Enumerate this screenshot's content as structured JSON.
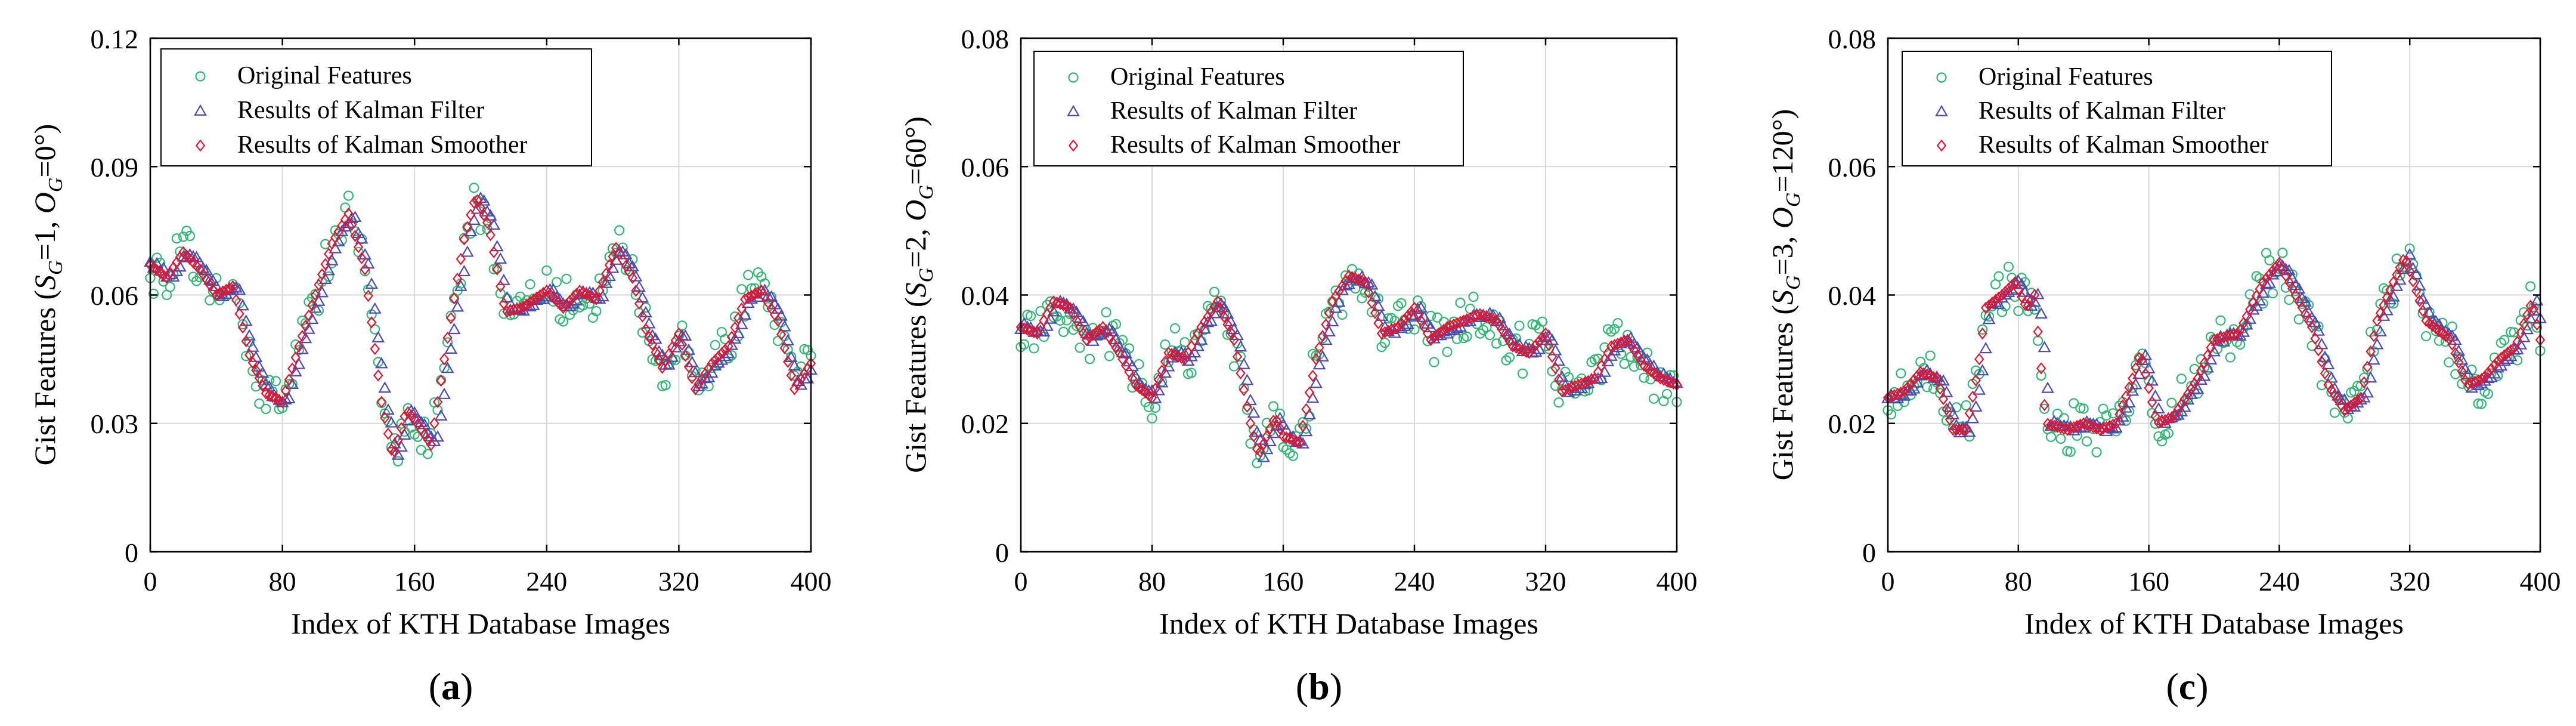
{
  "colors": {
    "original": "#2eb872",
    "filter": "#4b4bb5",
    "smoother": "#e8132b",
    "grid": "#d9d9d9",
    "axis": "#000000"
  },
  "legend": {
    "original": "Original Features",
    "filter": "Results of Kalman Filter",
    "smoother": "Results of Kalman Smoother"
  },
  "chart_data": [
    {
      "type": "scatter",
      "panel_label": "(a)",
      "panel_letter": "a",
      "title": "",
      "xlabel": "Index of KTH Database Images",
      "ylabel": "Gist Features (S_G=1, O_G=0°)",
      "ylabel_parts": {
        "prefix": "Gist Features (",
        "s": "S",
        "sub1": "G",
        "mid": "=1, ",
        "o": "O",
        "sub2": "G",
        "suffix": "=0°)"
      },
      "xlim": [
        0,
        400
      ],
      "ylim": [
        0,
        0.12
      ],
      "xticks": [
        0,
        80,
        160,
        240,
        320,
        400
      ],
      "yticks": [
        0,
        0.03,
        0.06,
        0.09,
        0.12
      ],
      "ytick_labels": [
        "0",
        "0.03",
        "0.06",
        "0.09",
        "0.12"
      ],
      "legend_position": "top-left",
      "series_names": [
        "Original Features",
        "Results of Kalman Filter",
        "Results of Kalman Smoother"
      ],
      "smoother_keypoints": [
        [
          0,
          0.067
        ],
        [
          10,
          0.064
        ],
        [
          20,
          0.07
        ],
        [
          30,
          0.066
        ],
        [
          40,
          0.06
        ],
        [
          50,
          0.062
        ],
        [
          60,
          0.046
        ],
        [
          70,
          0.037
        ],
        [
          80,
          0.035
        ],
        [
          90,
          0.048
        ],
        [
          100,
          0.06
        ],
        [
          110,
          0.072
        ],
        [
          120,
          0.079
        ],
        [
          130,
          0.066
        ],
        [
          140,
          0.035
        ],
        [
          147,
          0.022
        ],
        [
          155,
          0.033
        ],
        [
          160,
          0.031
        ],
        [
          170,
          0.025
        ],
        [
          180,
          0.05
        ],
        [
          190,
          0.073
        ],
        [
          197,
          0.083
        ],
        [
          205,
          0.076
        ],
        [
          215,
          0.056
        ],
        [
          225,
          0.057
        ],
        [
          240,
          0.061
        ],
        [
          250,
          0.057
        ],
        [
          260,
          0.061
        ],
        [
          270,
          0.059
        ],
        [
          282,
          0.071
        ],
        [
          292,
          0.064
        ],
        [
          300,
          0.052
        ],
        [
          310,
          0.043
        ],
        [
          320,
          0.051
        ],
        [
          330,
          0.038
        ],
        [
          340,
          0.044
        ],
        [
          350,
          0.048
        ],
        [
          360,
          0.059
        ],
        [
          370,
          0.061
        ],
        [
          380,
          0.054
        ],
        [
          390,
          0.038
        ],
        [
          400,
          0.044
        ]
      ],
      "noise_amplitude": 0.005
    },
    {
      "type": "scatter",
      "panel_label": "(b)",
      "panel_letter": "b",
      "title": "",
      "xlabel": "Index of KTH Database Images",
      "ylabel": "Gist Features (S_G=2, O_G=60°)",
      "ylabel_parts": {
        "prefix": "Gist Features (",
        "s": "S",
        "sub1": "G",
        "mid": "=2, ",
        "o": "O",
        "sub2": "G",
        "suffix": "=60°)"
      },
      "xlim": [
        0,
        400
      ],
      "ylim": [
        0,
        0.08
      ],
      "xticks": [
        0,
        80,
        160,
        240,
        320,
        400
      ],
      "yticks": [
        0,
        0.02,
        0.04,
        0.06,
        0.08
      ],
      "ytick_labels": [
        "0",
        "0.02",
        "0.04",
        "0.06",
        "0.08"
      ],
      "legend_position": "top-left",
      "series_names": [
        "Original Features",
        "Results of Kalman Filter",
        "Results of Kalman Smoother"
      ],
      "smoother_keypoints": [
        [
          0,
          0.035
        ],
        [
          10,
          0.034
        ],
        [
          20,
          0.039
        ],
        [
          30,
          0.038
        ],
        [
          40,
          0.033
        ],
        [
          50,
          0.035
        ],
        [
          60,
          0.031
        ],
        [
          70,
          0.026
        ],
        [
          80,
          0.024
        ],
        [
          90,
          0.031
        ],
        [
          100,
          0.03
        ],
        [
          110,
          0.035
        ],
        [
          120,
          0.039
        ],
        [
          130,
          0.033
        ],
        [
          140,
          0.02
        ],
        [
          145,
          0.015
        ],
        [
          155,
          0.021
        ],
        [
          160,
          0.018
        ],
        [
          170,
          0.017
        ],
        [
          180,
          0.03
        ],
        [
          190,
          0.039
        ],
        [
          200,
          0.043
        ],
        [
          210,
          0.042
        ],
        [
          220,
          0.034
        ],
        [
          230,
          0.035
        ],
        [
          240,
          0.038
        ],
        [
          250,
          0.033
        ],
        [
          260,
          0.035
        ],
        [
          270,
          0.036
        ],
        [
          280,
          0.037
        ],
        [
          290,
          0.036
        ],
        [
          300,
          0.032
        ],
        [
          310,
          0.031
        ],
        [
          320,
          0.034
        ],
        [
          330,
          0.025
        ],
        [
          340,
          0.026
        ],
        [
          350,
          0.027
        ],
        [
          360,
          0.032
        ],
        [
          370,
          0.033
        ],
        [
          380,
          0.029
        ],
        [
          390,
          0.027
        ],
        [
          400,
          0.026
        ]
      ],
      "noise_amplitude": 0.0035
    },
    {
      "type": "scatter",
      "panel_label": "(c)",
      "panel_letter": "c",
      "title": "",
      "xlabel": "Index of KTH Database Images",
      "ylabel": "Gist Features (S_G=3, O_G=120°)",
      "ylabel_parts": {
        "prefix": "Gist Features (",
        "s": "S",
        "sub1": "G",
        "mid": "=3, ",
        "o": "O",
        "sub2": "G",
        "suffix": "=120°)"
      },
      "xlim": [
        0,
        400
      ],
      "ylim": [
        0,
        0.08
      ],
      "xticks": [
        0,
        80,
        160,
        240,
        320,
        400
      ],
      "yticks": [
        0,
        0.02,
        0.04,
        0.06,
        0.08
      ],
      "ytick_labels": [
        "0",
        "0.02",
        "0.04",
        "0.06",
        "0.08"
      ],
      "legend_position": "top-left",
      "series_names": [
        "Original Features",
        "Results of Kalman Filter",
        "Results of Kalman Smoother"
      ],
      "smoother_keypoints": [
        [
          0,
          0.024
        ],
        [
          10,
          0.025
        ],
        [
          20,
          0.028
        ],
        [
          30,
          0.027
        ],
        [
          40,
          0.019
        ],
        [
          48,
          0.019
        ],
        [
          55,
          0.028
        ],
        [
          60,
          0.038
        ],
        [
          70,
          0.04
        ],
        [
          78,
          0.042
        ],
        [
          85,
          0.038
        ],
        [
          90,
          0.04
        ],
        [
          97,
          0.02
        ],
        [
          110,
          0.019
        ],
        [
          120,
          0.02
        ],
        [
          130,
          0.019
        ],
        [
          140,
          0.02
        ],
        [
          150,
          0.027
        ],
        [
          155,
          0.031
        ],
        [
          165,
          0.02
        ],
        [
          175,
          0.021
        ],
        [
          190,
          0.027
        ],
        [
          200,
          0.033
        ],
        [
          215,
          0.034
        ],
        [
          230,
          0.042
        ],
        [
          240,
          0.045
        ],
        [
          250,
          0.04
        ],
        [
          260,
          0.035
        ],
        [
          270,
          0.026
        ],
        [
          280,
          0.022
        ],
        [
          290,
          0.024
        ],
        [
          300,
          0.036
        ],
        [
          310,
          0.042
        ],
        [
          317,
          0.046
        ],
        [
          330,
          0.036
        ],
        [
          345,
          0.033
        ],
        [
          355,
          0.026
        ],
        [
          365,
          0.027
        ],
        [
          375,
          0.03
        ],
        [
          385,
          0.032
        ],
        [
          395,
          0.039
        ],
        [
          400,
          0.033
        ]
      ],
      "noise_amplitude": 0.0035
    }
  ]
}
